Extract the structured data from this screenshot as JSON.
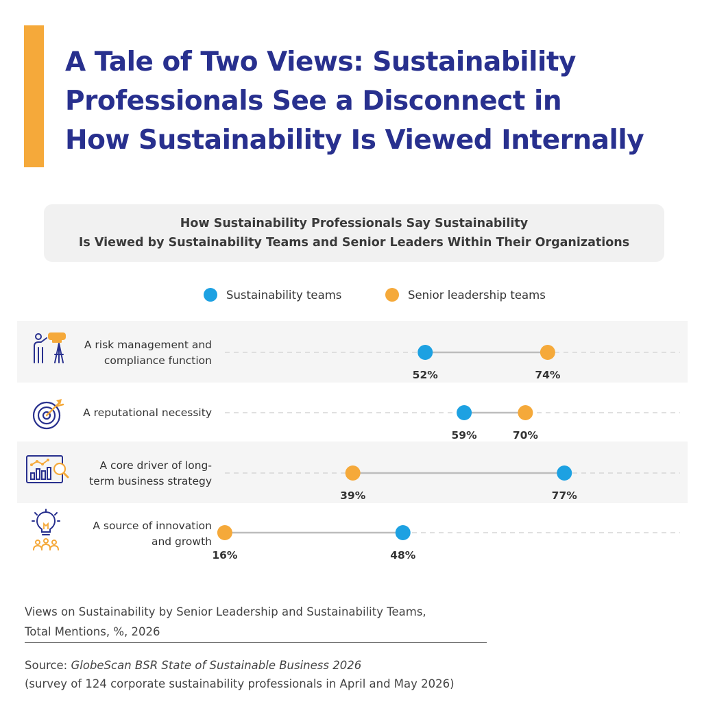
{
  "header": {
    "title_lines": [
      "A Tale of Two Views: Sustainability",
      "Professionals See a Disconnect in",
      "How Sustainability Is Viewed Internally"
    ],
    "accent_color": "#F5A93A",
    "title_color": "#28308E"
  },
  "chart_subtitle_lines": [
    "How Sustainability Professionals Say Sustainability",
    "Is Viewed by Sustainability Teams and Senior Leaders Within Their Organizations"
  ],
  "legend": [
    {
      "label": "Sustainability teams",
      "color": "#1DA1E2"
    },
    {
      "label": "Senior leadership teams",
      "color": "#F5A93A"
    }
  ],
  "rows": [
    {
      "label_lines": [
        "A risk management and",
        "compliance function"
      ],
      "icon": "binoculars-person-icon"
    },
    {
      "label_lines": [
        "A reputational necessity"
      ],
      "icon": "target-arrow-icon"
    },
    {
      "label_lines": [
        "A core driver of long-",
        "term business strategy"
      ],
      "icon": "chart-magnifier-icon"
    },
    {
      "label_lines": [
        "A source of innovation",
        "and growth"
      ],
      "icon": "lightbulb-people-icon"
    }
  ],
  "chart_data": {
    "type": "dot",
    "categories": [
      "A risk management and compliance function",
      "A reputational necessity",
      "A core driver of long-term business strategy",
      "A source of innovation and growth"
    ],
    "series": [
      {
        "name": "Sustainability teams",
        "color": "#1DA1E2",
        "values": [
          52,
          59,
          77,
          48
        ]
      },
      {
        "name": "Senior leadership teams",
        "color": "#F5A93A",
        "values": [
          74,
          70,
          39,
          16
        ]
      }
    ],
    "value_suffix": "%",
    "xlim": [
      0,
      100
    ]
  },
  "footer": {
    "caption_lines": [
      "Views on Sustainability by Senior Leadership and Sustainability Teams,",
      "Total Mentions, %, 2026"
    ],
    "source_label": "Source:",
    "source_title": "GlobeScan BSR State of Sustainable Business 2026",
    "source_note": "(survey of 124 corporate sustainability professionals in April and May 2026)"
  }
}
